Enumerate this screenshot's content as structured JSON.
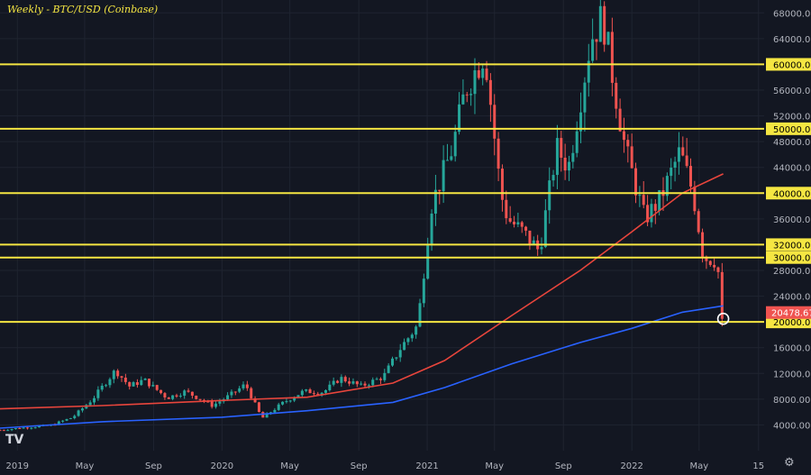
{
  "title": "Weekly - BTC/USD (Coinbase)",
  "logo_text": "TV",
  "settings_icon": "gear-icon",
  "colors": {
    "background": "#131722",
    "up_candle": "#26a69a",
    "down_candle": "#ef5350",
    "support_line": "#f5e642",
    "ma_red": "#e8453c",
    "ma_blue": "#2962ff",
    "grid": "#1f2430",
    "axis_text": "#b2b5be",
    "price_tag": "#f5e642",
    "last_price_tag": "#ef5350"
  },
  "chart_data": {
    "type": "candlestick",
    "title": "Weekly - BTC/USD (Coinbase)",
    "y_ticks": [
      4000,
      8000,
      12000,
      16000,
      20000,
      24000,
      28000,
      32000,
      36000,
      40000,
      44000,
      48000,
      52000,
      56000,
      60000,
      64000,
      68000
    ],
    "y_tick_labels": [
      "4000.00",
      "8000.00",
      "12000.00",
      "16000.00",
      "20000.00",
      "24000.00",
      "28000.00",
      "32000.00",
      "36000.00",
      "40000.00",
      "44000.00",
      "48000.00",
      "52000.00",
      "56000.00",
      "60000.00",
      "64000.00",
      "68000.00"
    ],
    "ylim": [
      0,
      70000
    ],
    "x_ticks": [
      {
        "label": "2019",
        "date": "2019-01-01"
      },
      {
        "label": "May",
        "date": "2019-05-01"
      },
      {
        "label": "Sep",
        "date": "2019-09-01"
      },
      {
        "label": "2020",
        "date": "2020-01-01"
      },
      {
        "label": "May",
        "date": "2020-05-01"
      },
      {
        "label": "Sep",
        "date": "2020-09-01"
      },
      {
        "label": "2021",
        "date": "2021-01-01"
      },
      {
        "label": "May",
        "date": "2021-05-01"
      },
      {
        "label": "Sep",
        "date": "2021-09-01"
      },
      {
        "label": "2022",
        "date": "2022-01-01"
      },
      {
        "label": "May",
        "date": "2022-05-01"
      },
      {
        "label": "15",
        "date": "2022-08-15"
      }
    ],
    "xlim": [
      "2018-12-01",
      "2022-08-25"
    ],
    "horizontal_levels": [
      {
        "value": 60000,
        "label": "60000.00"
      },
      {
        "value": 50000,
        "label": "50000.00"
      },
      {
        "value": 40000,
        "label": "40000.00"
      },
      {
        "value": 32000,
        "label": "32000.00"
      },
      {
        "value": 30000,
        "label": "30000.00"
      },
      {
        "value": 20000,
        "label": "20000.00"
      }
    ],
    "last_price": {
      "value": 20478.67,
      "label": "20478.67",
      "date": "2022-06-13"
    },
    "keypoints": [
      [
        "2018-12-01",
        3200
      ],
      [
        "2019-01-15",
        3600
      ],
      [
        "2019-03-01",
        3900
      ],
      [
        "2019-04-10",
        5200
      ],
      [
        "2019-05-15",
        8000
      ],
      [
        "2019-06-25",
        12500
      ],
      [
        "2019-07-20",
        10000
      ],
      [
        "2019-08-15",
        11000
      ],
      [
        "2019-09-25",
        8200
      ],
      [
        "2019-10-28",
        9200
      ],
      [
        "2019-12-15",
        7000
      ],
      [
        "2020-01-15",
        8600
      ],
      [
        "2020-02-12",
        10300
      ],
      [
        "2020-03-12",
        5000
      ],
      [
        "2020-04-20",
        7500
      ],
      [
        "2020-05-25",
        9200
      ],
      [
        "2020-06-30",
        9100
      ],
      [
        "2020-07-30",
        11300
      ],
      [
        "2020-09-05",
        10000
      ],
      [
        "2020-10-15",
        11500
      ],
      [
        "2020-11-15",
        16000
      ],
      [
        "2020-12-15",
        19500
      ],
      [
        "2021-01-08",
        38000
      ],
      [
        "2021-02-15",
        47000
      ],
      [
        "2021-03-10",
        56000
      ],
      [
        "2021-04-14",
        62000
      ],
      [
        "2021-05-12",
        40000
      ],
      [
        "2021-05-25",
        36000
      ],
      [
        "2021-06-20",
        34000
      ],
      [
        "2021-07-20",
        31000
      ],
      [
        "2021-08-20",
        47000
      ],
      [
        "2021-09-10",
        44000
      ],
      [
        "2021-10-20",
        64000
      ],
      [
        "2021-11-10",
        67500
      ],
      [
        "2021-11-30",
        57000
      ],
      [
        "2021-12-20",
        47000
      ],
      [
        "2022-01-24",
        36000
      ],
      [
        "2022-02-20",
        39000
      ],
      [
        "2022-03-28",
        46500
      ],
      [
        "2022-04-20",
        40000
      ],
      [
        "2022-05-09",
        30000
      ],
      [
        "2022-05-30",
        29500
      ],
      [
        "2022-06-06",
        27000
      ],
      [
        "2022-06-13",
        20478.67
      ]
    ],
    "moving_averages": [
      {
        "color": "#e8453c",
        "points": [
          [
            "2018-12-01",
            6500
          ],
          [
            "2019-06-01",
            7000
          ],
          [
            "2020-01-01",
            7800
          ],
          [
            "2020-06-01",
            8300
          ],
          [
            "2020-11-01",
            10500
          ],
          [
            "2021-02-01",
            14000
          ],
          [
            "2021-06-01",
            21000
          ],
          [
            "2021-10-01",
            28000
          ],
          [
            "2022-01-01",
            34000
          ],
          [
            "2022-04-01",
            40000
          ],
          [
            "2022-06-13",
            43000
          ]
        ]
      },
      {
        "color": "#2962ff",
        "points": [
          [
            "2018-12-01",
            3500
          ],
          [
            "2019-06-01",
            4500
          ],
          [
            "2020-01-01",
            5200
          ],
          [
            "2020-06-01",
            6200
          ],
          [
            "2020-11-01",
            7500
          ],
          [
            "2021-02-01",
            9800
          ],
          [
            "2021-06-01",
            13500
          ],
          [
            "2021-10-01",
            16800
          ],
          [
            "2022-01-01",
            19000
          ],
          [
            "2022-04-01",
            21500
          ],
          [
            "2022-06-13",
            22500
          ]
        ]
      }
    ]
  }
}
